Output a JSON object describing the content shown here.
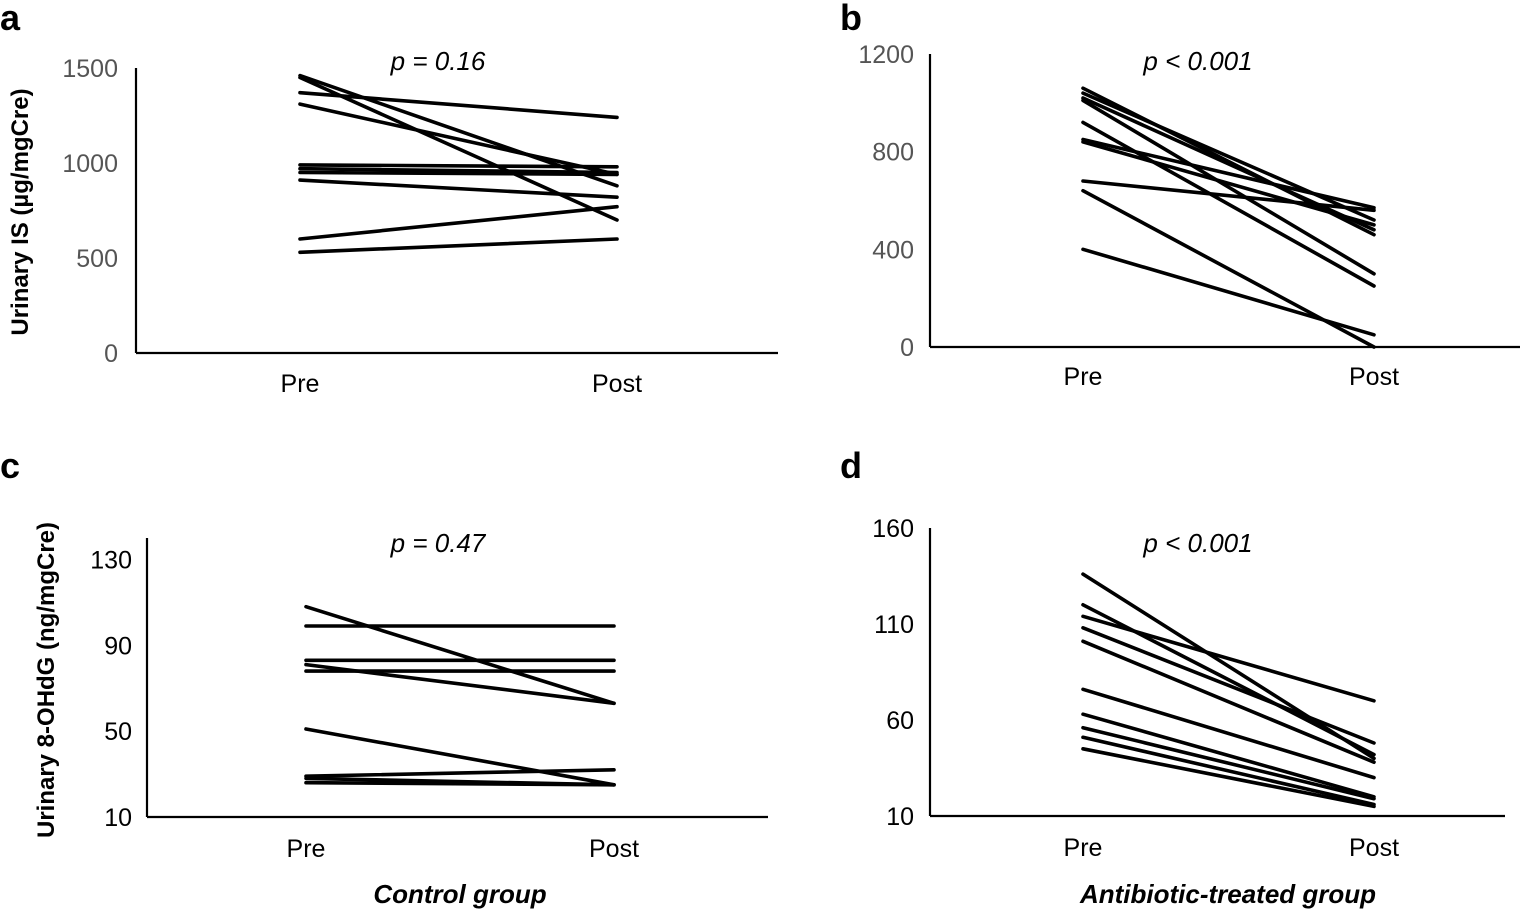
{
  "figure": {
    "group_labels": [
      "Control group",
      "Antibiotic-treated group"
    ]
  },
  "chart_data": [
    {
      "panel": "a",
      "type": "line",
      "ylabel": "Urinary IS (µg/mgCre)",
      "annotation": "p = 0.16",
      "categories": [
        "Pre",
        "Post"
      ],
      "ylim": [
        0,
        1500
      ],
      "yticks": [
        0,
        500,
        1000,
        1500
      ],
      "tick_color": "#555555",
      "series": [
        {
          "values": [
            1460,
            880
          ]
        },
        {
          "values": [
            1450,
            700
          ]
        },
        {
          "values": [
            1370,
            1240
          ]
        },
        {
          "values": [
            1310,
            940
          ]
        },
        {
          "values": [
            990,
            980
          ]
        },
        {
          "values": [
            970,
            950
          ]
        },
        {
          "values": [
            950,
            940
          ]
        },
        {
          "values": [
            910,
            820
          ]
        },
        {
          "values": [
            600,
            770
          ]
        },
        {
          "values": [
            530,
            600
          ]
        }
      ]
    },
    {
      "panel": "b",
      "type": "line",
      "ylabel": "",
      "annotation": "p < 0.001",
      "categories": [
        "Pre",
        "Post"
      ],
      "ylim": [
        0,
        1200
      ],
      "yticks": [
        0,
        400,
        800,
        1200
      ],
      "tick_color": "#555555",
      "series": [
        {
          "values": [
            1060,
            460
          ]
        },
        {
          "values": [
            1040,
            520
          ]
        },
        {
          "values": [
            1020,
            480
          ]
        },
        {
          "values": [
            1010,
            300
          ]
        },
        {
          "values": [
            920,
            250
          ]
        },
        {
          "values": [
            850,
            570
          ]
        },
        {
          "values": [
            840,
            500
          ]
        },
        {
          "values": [
            680,
            560
          ]
        },
        {
          "values": [
            640,
            0
          ]
        },
        {
          "values": [
            400,
            50
          ]
        }
      ]
    },
    {
      "panel": "c",
      "type": "line",
      "ylabel": "Urinary 8-OHdG (ng/mgCre)",
      "annotation": "p = 0.47",
      "categories": [
        "Pre",
        "Post"
      ],
      "ylim": [
        10,
        140
      ],
      "yticks": [
        10,
        50,
        90,
        130
      ],
      "tick_color": "#000000",
      "series": [
        {
          "values": [
            108,
            63
          ]
        },
        {
          "values": [
            99,
            99
          ]
        },
        {
          "values": [
            83,
            83
          ]
        },
        {
          "values": [
            81,
            63
          ]
        },
        {
          "values": [
            78,
            78
          ]
        },
        {
          "values": [
            51,
            25
          ]
        },
        {
          "values": [
            29,
            32
          ]
        },
        {
          "values": [
            28,
            25
          ]
        },
        {
          "values": [
            26,
            25
          ]
        }
      ]
    },
    {
      "panel": "d",
      "type": "line",
      "ylabel": "",
      "annotation": "p < 0.001",
      "categories": [
        "Pre",
        "Post"
      ],
      "ylim": [
        10,
        160
      ],
      "yticks": [
        10,
        60,
        110,
        160
      ],
      "tick_color": "#000000",
      "series": [
        {
          "values": [
            136,
            40
          ]
        },
        {
          "values": [
            120,
            42
          ]
        },
        {
          "values": [
            114,
            70
          ]
        },
        {
          "values": [
            108,
            48
          ]
        },
        {
          "values": [
            101,
            38
          ]
        },
        {
          "values": [
            76,
            30
          ]
        },
        {
          "values": [
            63,
            20
          ]
        },
        {
          "values": [
            56,
            19
          ]
        },
        {
          "values": [
            51,
            16
          ]
        },
        {
          "values": [
            45,
            15
          ]
        }
      ]
    }
  ]
}
